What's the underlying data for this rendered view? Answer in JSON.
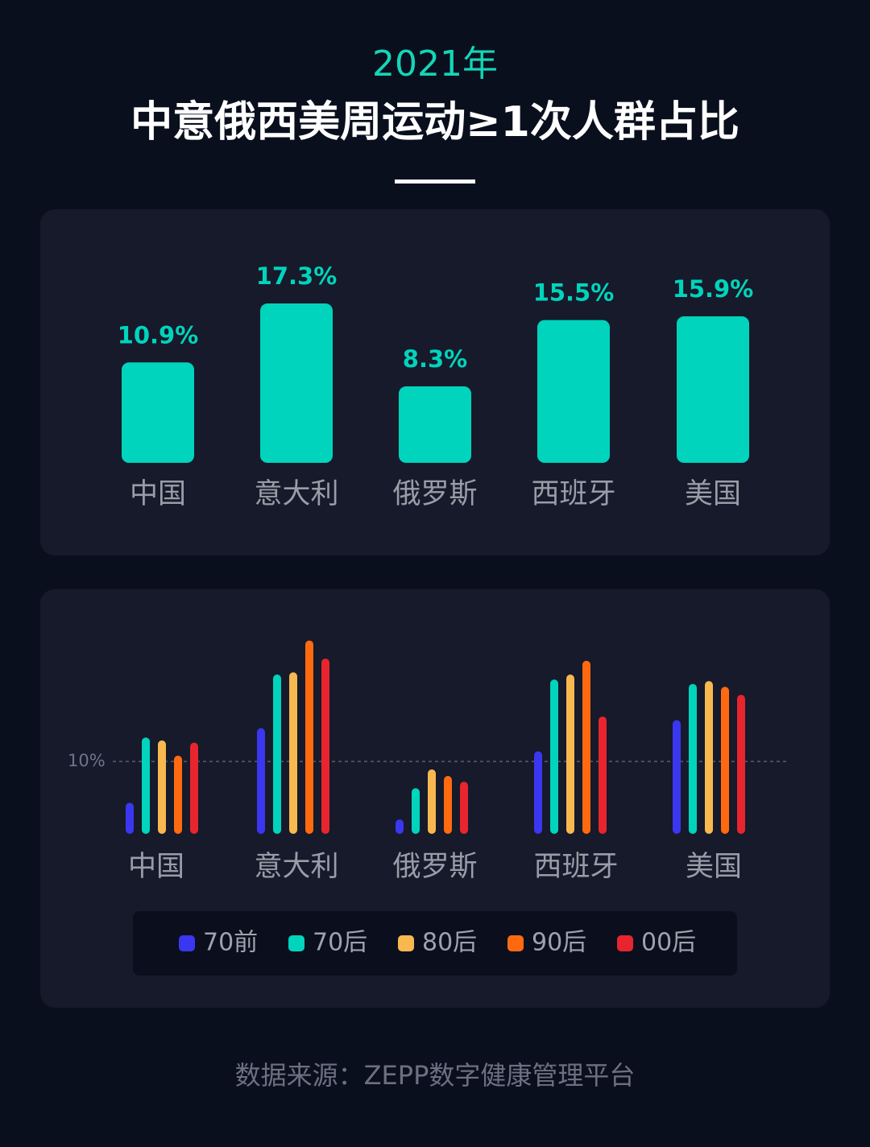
{
  "subtitle": "2021年",
  "title": "中意俄西美周运动≥1次人群占比",
  "source": "数据来源：ZEPP数字健康管理平台",
  "chart_data": [
    {
      "type": "bar",
      "categories": [
        "中国",
        "意大利",
        "俄罗斯",
        "西班牙",
        "美国"
      ],
      "values": [
        10.9,
        17.3,
        8.3,
        15.5,
        15.9
      ],
      "value_labels": [
        "10.9%",
        "17.3%",
        "8.3%",
        "15.5%",
        "15.9%"
      ],
      "color": "#00d4bc",
      "ylim": [
        0,
        18
      ]
    },
    {
      "type": "grouped_bar",
      "categories": [
        "中国",
        "意大利",
        "俄罗斯",
        "西班牙",
        "美国"
      ],
      "series": [
        {
          "name": "70前",
          "color": "#3b36f0",
          "values": [
            4.3,
            14.6,
            2.0,
            11.4,
            15.7
          ]
        },
        {
          "name": "70后",
          "color": "#00d4bc",
          "values": [
            13.3,
            22.0,
            6.3,
            21.3,
            20.7
          ]
        },
        {
          "name": "80后",
          "color": "#f8b850",
          "values": [
            12.9,
            22.3,
            8.9,
            22.0,
            21.1
          ]
        },
        {
          "name": "90后",
          "color": "#ff6a10",
          "values": [
            10.8,
            26.7,
            8.0,
            23.9,
            20.3
          ]
        },
        {
          "name": "00后",
          "color": "#e8252e",
          "values": [
            12.6,
            24.2,
            7.2,
            16.2,
            19.2
          ]
        }
      ],
      "reference_line": {
        "value": 10,
        "label": "10%"
      },
      "ylim": [
        0,
        30
      ]
    }
  ]
}
